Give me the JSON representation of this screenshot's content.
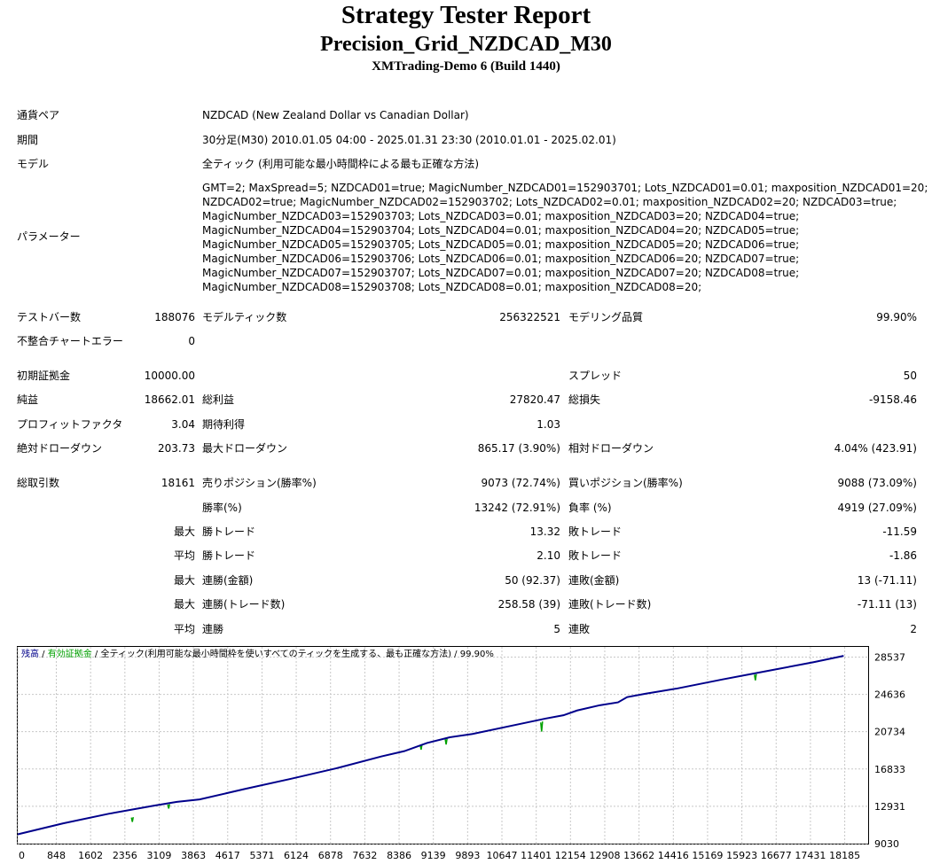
{
  "header": {
    "title": "Strategy Tester Report",
    "ea_name": "Precision_Grid_NZDCAD_M30",
    "server": "XMTrading-Demo 6 (Build 1440)"
  },
  "info": {
    "symbol_label": "通貨ペア",
    "symbol_value": "NZDCAD (New Zealand Dollar vs Canadian Dollar)",
    "period_label": "期間",
    "period_value": "30分足(M30) 2010.01.05 04:00 - 2025.01.31 23:30 (2010.01.01 - 2025.02.01)",
    "model_label": "モデル",
    "model_value": "全ティック (利用可能な最小時間枠による最も正確な方法)",
    "params_label": "パラメーター",
    "params_lines": [
      "GMT=2; MaxSpread=5; NZDCAD01=true; MagicNumber_NZDCAD01=152903701; Lots_NZDCAD01=0.01; maxposition_NZDCAD01=20;",
      "NZDCAD02=true; MagicNumber_NZDCAD02=152903702; Lots_NZDCAD02=0.01; maxposition_NZDCAD02=20; NZDCAD03=true;",
      "MagicNumber_NZDCAD03=152903703; Lots_NZDCAD03=0.01; maxposition_NZDCAD03=20; NZDCAD04=true;",
      "MagicNumber_NZDCAD04=152903704; Lots_NZDCAD04=0.01; maxposition_NZDCAD04=20; NZDCAD05=true;",
      "MagicNumber_NZDCAD05=152903705; Lots_NZDCAD05=0.01; maxposition_NZDCAD05=20; NZDCAD06=true;",
      "MagicNumber_NZDCAD06=152903706; Lots_NZDCAD06=0.01; maxposition_NZDCAD06=20; NZDCAD07=true;",
      "MagicNumber_NZDCAD07=152903707; Lots_NZDCAD07=0.01; maxposition_NZDCAD07=20; NZDCAD08=true;",
      "MagicNumber_NZDCAD08=152903708; Lots_NZDCAD08=0.01; maxposition_NZDCAD08=20;"
    ]
  },
  "stats": {
    "bars_label": "テストバー数",
    "bars_value": "188076",
    "ticks_label": "モデルティック数",
    "ticks_value": "256322521",
    "quality_label": "モデリング品質",
    "quality_value": "99.90%",
    "mismatch_label": "不整合チャートエラー",
    "mismatch_value": "0",
    "deposit_label": "初期証拠金",
    "deposit_value": "10000.00",
    "spread_label": "スプレッド",
    "spread_value": "50",
    "net_label": "純益",
    "net_value": "18662.01",
    "gross_profit_label": "総利益",
    "gross_profit_value": "27820.47",
    "gross_loss_label": "総損失",
    "gross_loss_value": "-9158.46",
    "pf_label": "プロフィットファクタ",
    "pf_value": "3.04",
    "expected_label": "期待利得",
    "expected_value": "1.03",
    "abs_dd_label": "絶対ドローダウン",
    "abs_dd_value": "203.73",
    "max_dd_label": "最大ドローダウン",
    "max_dd_value": "865.17 (3.90%)",
    "rel_dd_label": "相対ドローダウン",
    "rel_dd_value": "4.04% (423.91)",
    "total_trades_label": "総取引数",
    "total_trades_value": "18161",
    "short_label": "売りポジション(勝率%)",
    "short_value": "9073 (72.74%)",
    "long_label": "買いポジション(勝率%)",
    "long_value": "9088 (73.09%)",
    "win_rate_label": "勝率(%)",
    "win_rate_value": "13242 (72.91%)",
    "loss_rate_label": "負率 (%)",
    "loss_rate_value": "4919 (27.09%)",
    "max_prefix": "最大",
    "avg_prefix": "平均",
    "win_trade_label": "勝トレード",
    "loss_trade_label": "敗トレード",
    "max_win_value": "13.32",
    "max_loss_value": "-11.59",
    "avg_win_value": "2.10",
    "avg_loss_value": "-1.86",
    "consec_wins_money_label": "連勝(金額)",
    "consec_wins_money_value": "50 (92.37)",
    "consec_losses_money_label": "連敗(金額)",
    "consec_losses_money_value": "13 (-71.11)",
    "consec_wins_trades_label": "連勝(トレード数)",
    "consec_wins_trades_value": "258.58 (39)",
    "consec_losses_trades_label": "連敗(トレード数)",
    "consec_losses_trades_value": "-71.11 (13)",
    "avg_consec_wins_label": "連勝",
    "avg_consec_wins_value": "5",
    "avg_consec_losses_label": "連敗",
    "avg_consec_losses_value": "2"
  },
  "chart_legend": {
    "balance": "残高",
    "sep1": " / ",
    "equity": "有効証拠金",
    "sep2": " / ",
    "rest": "全ティック(利用可能な最小時間枠を使いすべてのティックを生成する、最も正確な方法)",
    "sep3": " / ",
    "quality": "99.90%"
  },
  "colors": {
    "balance": "#00008b",
    "equity": "#00a000",
    "grid": "#c8c8c8",
    "frame": "#000000"
  },
  "chart_data": {
    "type": "line",
    "xlim": [
      0,
      18700
    ],
    "ylim": [
      9030,
      29600
    ],
    "x_ticks": [
      0,
      848,
      1602,
      2356,
      3109,
      3863,
      4617,
      5371,
      6124,
      6878,
      7632,
      8386,
      9139,
      9893,
      10647,
      11401,
      12154,
      12908,
      13662,
      14416,
      15169,
      15923,
      16677,
      17431,
      18185
    ],
    "y_ticks": [
      9030,
      12931,
      16833,
      20734,
      24636,
      28537
    ],
    "series": [
      {
        "name": "残高",
        "x": [
          0,
          1000,
          2000,
          3000,
          3500,
          4000,
          5000,
          6000,
          7000,
          8000,
          8500,
          9000,
          9500,
          10000,
          11000,
          11600,
          12000,
          12300,
          12800,
          13200,
          13400,
          13800,
          14500,
          15500,
          16500,
          17500,
          18161
        ],
        "y": [
          10000,
          11150,
          12150,
          13000,
          13400,
          13650,
          14750,
          15800,
          16900,
          18150,
          18700,
          19550,
          20150,
          20500,
          21500,
          22100,
          22450,
          22950,
          23500,
          23800,
          24350,
          24700,
          25250,
          26200,
          27100,
          28000,
          28662
        ]
      },
      {
        "name": "有効証拠金",
        "x": [
          2500,
          2520,
          2540,
          3300,
          3320,
          3340,
          8850,
          8870,
          8890,
          9400,
          9420,
          9440,
          11500,
          11520,
          11540,
          16200,
          16220,
          16240
        ],
        "y": [
          11750,
          11300,
          11800,
          13100,
          12700,
          13150,
          19350,
          18850,
          19400,
          19950,
          19400,
          20000,
          21700,
          20750,
          21800,
          26700,
          26100,
          26750
        ]
      }
    ]
  }
}
